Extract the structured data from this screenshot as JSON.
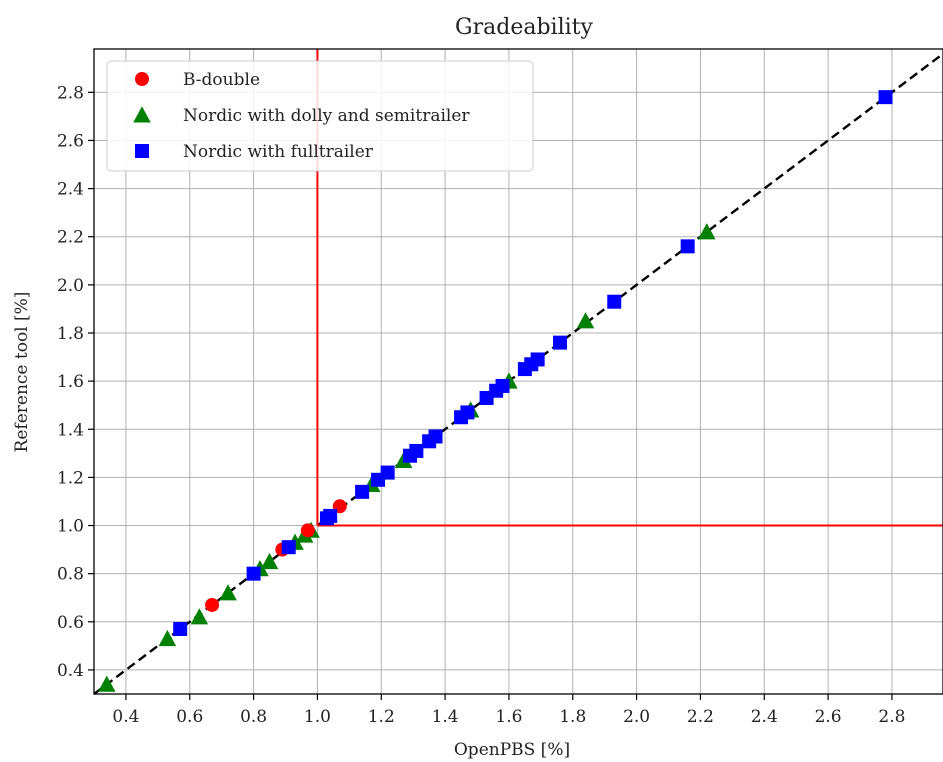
{
  "chart_data": {
    "type": "scatter",
    "title": "Gradeability",
    "xlabel": "OpenPBS [%]",
    "ylabel": "Reference tool [%]",
    "xlim": [
      0.3,
      2.96
    ],
    "ylim": [
      0.3,
      2.98
    ],
    "xticks": [
      0.4,
      0.6,
      0.8,
      1.0,
      1.2,
      1.4,
      1.6,
      1.8,
      2.0,
      2.2,
      2.4,
      2.6,
      2.8
    ],
    "yticks": [
      0.4,
      0.6,
      0.8,
      1.0,
      1.2,
      1.4,
      1.6,
      1.8,
      2.0,
      2.2,
      2.4,
      2.6,
      2.8
    ],
    "xtick_labels": [
      "0.4",
      "0.6",
      "0.8",
      "1.0",
      "1.2",
      "1.4",
      "1.6",
      "1.8",
      "2.0",
      "2.2",
      "2.4",
      "2.6",
      "2.8"
    ],
    "ytick_labels": [
      "0.4",
      "0.6",
      "0.8",
      "1.0",
      "1.2",
      "1.4",
      "1.6",
      "1.8",
      "2.0",
      "2.2",
      "2.4",
      "2.6",
      "2.8"
    ],
    "grid": true,
    "legend_position": "top-left",
    "reference_line": {
      "style": "dashed",
      "color": "#000000",
      "from": [
        0.3,
        0.3
      ],
      "to": [
        2.96,
        2.96
      ]
    },
    "threshold_lines": {
      "color": "#ff0000",
      "x": 1.0,
      "y": 1.0
    },
    "series": [
      {
        "name": "B-double",
        "marker": "circle",
        "color": "#ff0000",
        "points": [
          [
            0.67,
            0.67
          ],
          [
            0.89,
            0.9
          ],
          [
            0.97,
            0.98
          ],
          [
            1.07,
            1.08
          ]
        ]
      },
      {
        "name": "Nordic with dolly and semitrailer",
        "marker": "triangle",
        "color": "#008000",
        "points": [
          [
            0.34,
            0.34
          ],
          [
            0.53,
            0.53
          ],
          [
            0.63,
            0.62
          ],
          [
            0.72,
            0.72
          ],
          [
            0.82,
            0.82
          ],
          [
            0.85,
            0.85
          ],
          [
            0.93,
            0.93
          ],
          [
            0.96,
            0.96
          ],
          [
            0.98,
            0.98
          ],
          [
            1.17,
            1.17
          ],
          [
            1.27,
            1.27
          ],
          [
            1.48,
            1.48
          ],
          [
            1.6,
            1.6
          ],
          [
            1.84,
            1.85
          ],
          [
            2.22,
            2.22
          ]
        ]
      },
      {
        "name": "Nordic with fulltrailer",
        "marker": "square",
        "color": "#0000ff",
        "points": [
          [
            0.57,
            0.57
          ],
          [
            0.8,
            0.8
          ],
          [
            0.91,
            0.91
          ],
          [
            1.03,
            1.03
          ],
          [
            1.04,
            1.04
          ],
          [
            1.14,
            1.14
          ],
          [
            1.19,
            1.19
          ],
          [
            1.22,
            1.22
          ],
          [
            1.29,
            1.29
          ],
          [
            1.31,
            1.31
          ],
          [
            1.35,
            1.35
          ],
          [
            1.37,
            1.37
          ],
          [
            1.45,
            1.45
          ],
          [
            1.47,
            1.47
          ],
          [
            1.53,
            1.53
          ],
          [
            1.56,
            1.56
          ],
          [
            1.58,
            1.58
          ],
          [
            1.65,
            1.65
          ],
          [
            1.67,
            1.67
          ],
          [
            1.69,
            1.69
          ],
          [
            1.76,
            1.76
          ],
          [
            1.93,
            1.93
          ],
          [
            2.16,
            2.16
          ],
          [
            2.78,
            2.78
          ]
        ]
      }
    ]
  }
}
